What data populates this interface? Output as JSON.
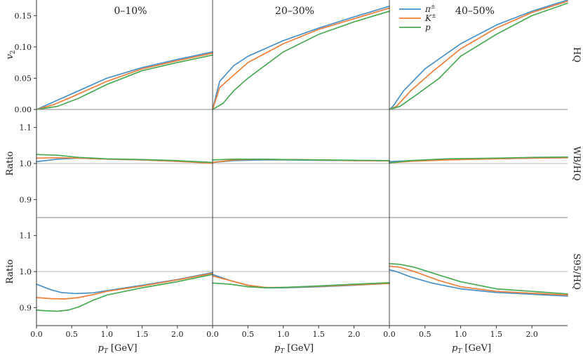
{
  "chart_data": {
    "type": "line",
    "title": "",
    "xlabel": "p_T [GeV]",
    "x_ticks": [
      0.0,
      0.5,
      1.0,
      1.5,
      2.0
    ],
    "x_tick_labels": [
      "0.0",
      "0.5",
      "1.0",
      "1.5",
      "2.0"
    ],
    "xlim": [
      0.0,
      2.5
    ],
    "columns": [
      {
        "title": "0–10%"
      },
      {
        "title": "20–30%"
      },
      {
        "title": "40–50%"
      }
    ],
    "rows": [
      {
        "ylabel": "v",
        "ylabel_sub": "2",
        "side_label": "HQ",
        "ylim": [
          0.0,
          0.175
        ],
        "y_ticks": [
          0.0,
          0.05,
          0.1,
          0.15
        ],
        "y_tick_labels": [
          "0.00",
          "0.05",
          "0.10",
          "0.15"
        ],
        "ref_line": null
      },
      {
        "ylabel": "Ratio",
        "side_label": "WB/HQ",
        "ylim": [
          0.85,
          1.15
        ],
        "y_ticks": [
          0.9,
          1.0,
          1.1
        ],
        "y_tick_labels": [
          "0.9",
          "1.0",
          "1.1"
        ],
        "ref_line": 1.0
      },
      {
        "ylabel": "Ratio",
        "side_label": "S95/HQ",
        "ylim": [
          0.85,
          1.15
        ],
        "y_ticks": [
          0.9,
          1.0,
          1.1
        ],
        "y_tick_labels": [
          "0.9",
          "1.0",
          "1.1"
        ],
        "ref_line": 1.0
      }
    ],
    "legend": {
      "placement": "top-right of middle column",
      "entries": [
        {
          "symbol": "π",
          "sup": "±",
          "color": "#4a90c8"
        },
        {
          "symbol": "K",
          "sup": "±",
          "color": "#ef7f3a"
        },
        {
          "symbol": "p",
          "sup": "",
          "color": "#4aaa55"
        }
      ]
    },
    "series_colors": {
      "pion": "#4a90c8",
      "kaon": "#ef7f3a",
      "proton": "#4aaa55"
    },
    "panels": [
      [
        {
          "pion": [
            [
              0.0,
              0.0
            ],
            [
              0.2,
              0.01
            ],
            [
              0.5,
              0.025
            ],
            [
              1.0,
              0.05
            ],
            [
              1.5,
              0.067
            ],
            [
              2.0,
              0.08
            ],
            [
              2.5,
              0.092
            ]
          ],
          "kaon": [
            [
              0.0,
              0.0
            ],
            [
              0.25,
              0.008
            ],
            [
              0.5,
              0.02
            ],
            [
              1.0,
              0.045
            ],
            [
              1.5,
              0.065
            ],
            [
              2.0,
              0.078
            ],
            [
              2.5,
              0.09
            ]
          ],
          "proton": [
            [
              0.0,
              0.0
            ],
            [
              0.3,
              0.005
            ],
            [
              0.6,
              0.018
            ],
            [
              1.0,
              0.04
            ],
            [
              1.5,
              0.062
            ],
            [
              2.0,
              0.075
            ],
            [
              2.5,
              0.087
            ]
          ]
        },
        {
          "pion": [
            [
              0.0,
              0.0
            ],
            [
              0.1,
              0.045
            ],
            [
              0.3,
              0.07
            ],
            [
              0.5,
              0.085
            ],
            [
              1.0,
              0.11
            ],
            [
              1.5,
              0.13
            ],
            [
              2.0,
              0.148
            ],
            [
              2.5,
              0.165
            ]
          ],
          "kaon": [
            [
              0.0,
              0.0
            ],
            [
              0.1,
              0.035
            ],
            [
              0.3,
              0.055
            ],
            [
              0.5,
              0.075
            ],
            [
              1.0,
              0.105
            ],
            [
              1.5,
              0.128
            ],
            [
              2.0,
              0.145
            ],
            [
              2.5,
              0.162
            ]
          ],
          "proton": [
            [
              0.0,
              0.0
            ],
            [
              0.15,
              0.01
            ],
            [
              0.3,
              0.03
            ],
            [
              0.5,
              0.05
            ],
            [
              1.0,
              0.092
            ],
            [
              1.5,
              0.12
            ],
            [
              2.0,
              0.14
            ],
            [
              2.5,
              0.157
            ]
          ]
        },
        {
          "pion": [
            [
              0.0,
              0.0
            ],
            [
              0.05,
              0.005
            ],
            [
              0.2,
              0.03
            ],
            [
              0.5,
              0.065
            ],
            [
              1.0,
              0.105
            ],
            [
              1.5,
              0.135
            ],
            [
              2.0,
              0.157
            ],
            [
              2.5,
              0.175
            ]
          ],
          "kaon": [
            [
              0.0,
              0.0
            ],
            [
              0.1,
              0.005
            ],
            [
              0.3,
              0.03
            ],
            [
              0.6,
              0.06
            ],
            [
              1.0,
              0.097
            ],
            [
              1.5,
              0.13
            ],
            [
              2.0,
              0.155
            ],
            [
              2.5,
              0.173
            ]
          ],
          "proton": [
            [
              0.0,
              0.0
            ],
            [
              0.15,
              0.005
            ],
            [
              0.4,
              0.025
            ],
            [
              0.7,
              0.05
            ],
            [
              1.0,
              0.085
            ],
            [
              1.5,
              0.12
            ],
            [
              2.0,
              0.15
            ],
            [
              2.5,
              0.17
            ]
          ]
        }
      ],
      [
        {
          "pion": [
            [
              0.0,
              1.005
            ],
            [
              0.3,
              1.012
            ],
            [
              0.6,
              1.015
            ],
            [
              1.0,
              1.012
            ],
            [
              1.5,
              1.01
            ],
            [
              2.0,
              1.006
            ],
            [
              2.5,
              1.002
            ]
          ],
          "kaon": [
            [
              0.0,
              1.015
            ],
            [
              0.3,
              1.016
            ],
            [
              0.6,
              1.015
            ],
            [
              1.0,
              1.012
            ],
            [
              1.5,
              1.01
            ],
            [
              2.0,
              1.006
            ],
            [
              2.5,
              1.001
            ]
          ],
          "proton": [
            [
              0.0,
              1.025
            ],
            [
              0.3,
              1.023
            ],
            [
              0.6,
              1.017
            ],
            [
              1.0,
              1.013
            ],
            [
              1.5,
              1.011
            ],
            [
              2.0,
              1.008
            ],
            [
              2.5,
              1.003
            ]
          ]
        },
        {
          "pion": [
            [
              0.0,
              1.003
            ],
            [
              0.3,
              1.008
            ],
            [
              0.7,
              1.01
            ],
            [
              1.0,
              1.01
            ],
            [
              1.5,
              1.009
            ],
            [
              2.0,
              1.008
            ],
            [
              2.5,
              1.008
            ]
          ],
          "kaon": [
            [
              0.0,
              1.003
            ],
            [
              0.3,
              1.01
            ],
            [
              0.7,
              1.012
            ],
            [
              1.0,
              1.011
            ],
            [
              1.5,
              1.01
            ],
            [
              2.0,
              1.008
            ],
            [
              2.5,
              1.007
            ]
          ],
          "proton": [
            [
              0.0,
              1.01
            ],
            [
              0.3,
              1.012
            ],
            [
              0.7,
              1.012
            ],
            [
              1.0,
              1.011
            ],
            [
              1.5,
              1.01
            ],
            [
              2.0,
              1.009
            ],
            [
              2.5,
              1.008
            ]
          ]
        },
        {
          "pion": [
            [
              0.0,
              1.005
            ],
            [
              0.3,
              1.008
            ],
            [
              0.8,
              1.012
            ],
            [
              1.5,
              1.013
            ],
            [
              2.0,
              1.015
            ],
            [
              2.5,
              1.016
            ]
          ],
          "kaon": [
            [
              0.0,
              1.002
            ],
            [
              0.3,
              1.006
            ],
            [
              0.8,
              1.01
            ],
            [
              1.5,
              1.013
            ],
            [
              2.0,
              1.015
            ],
            [
              2.5,
              1.016
            ]
          ],
          "proton": [
            [
              0.0,
              1.002
            ],
            [
              0.3,
              1.008
            ],
            [
              0.8,
              1.013
            ],
            [
              1.5,
              1.015
            ],
            [
              2.0,
              1.017
            ],
            [
              2.5,
              1.018
            ]
          ]
        }
      ],
      [
        {
          "pion": [
            [
              0.0,
              0.965
            ],
            [
              0.2,
              0.95
            ],
            [
              0.35,
              0.942
            ],
            [
              0.55,
              0.939
            ],
            [
              0.8,
              0.941
            ],
            [
              1.0,
              0.947
            ],
            [
              1.5,
              0.962
            ],
            [
              2.0,
              0.978
            ],
            [
              2.5,
              0.997
            ]
          ],
          "kaon": [
            [
              0.0,
              0.928
            ],
            [
              0.2,
              0.925
            ],
            [
              0.4,
              0.924
            ],
            [
              0.6,
              0.928
            ],
            [
              0.8,
              0.936
            ],
            [
              1.0,
              0.945
            ],
            [
              1.5,
              0.96
            ],
            [
              2.0,
              0.977
            ],
            [
              2.5,
              0.995
            ]
          ],
          "proton": [
            [
              0.0,
              0.893
            ],
            [
              0.15,
              0.891
            ],
            [
              0.3,
              0.89
            ],
            [
              0.45,
              0.893
            ],
            [
              0.6,
              0.902
            ],
            [
              0.8,
              0.92
            ],
            [
              1.0,
              0.935
            ],
            [
              1.5,
              0.955
            ],
            [
              2.0,
              0.972
            ],
            [
              2.5,
              0.992
            ]
          ]
        },
        {
          "pion": [
            [
              0.0,
              0.992
            ],
            [
              0.25,
              0.975
            ],
            [
              0.5,
              0.962
            ],
            [
              0.75,
              0.955
            ],
            [
              1.0,
              0.955
            ],
            [
              1.5,
              0.958
            ],
            [
              2.0,
              0.962
            ],
            [
              2.5,
              0.967
            ]
          ],
          "kaon": [
            [
              0.0,
              0.988
            ],
            [
              0.25,
              0.975
            ],
            [
              0.5,
              0.962
            ],
            [
              0.75,
              0.956
            ],
            [
              1.0,
              0.956
            ],
            [
              1.5,
              0.959
            ],
            [
              2.0,
              0.963
            ],
            [
              2.5,
              0.967
            ]
          ],
          "proton": [
            [
              0.0,
              0.968
            ],
            [
              0.25,
              0.965
            ],
            [
              0.5,
              0.958
            ],
            [
              0.75,
              0.955
            ],
            [
              1.0,
              0.956
            ],
            [
              1.5,
              0.96
            ],
            [
              2.0,
              0.965
            ],
            [
              2.5,
              0.969
            ]
          ]
        },
        {
          "pion": [
            [
              0.0,
              1.005
            ],
            [
              0.1,
              1.0
            ],
            [
              0.3,
              0.985
            ],
            [
              0.6,
              0.968
            ],
            [
              1.0,
              0.952
            ],
            [
              1.5,
              0.942
            ],
            [
              2.0,
              0.937
            ],
            [
              2.5,
              0.932
            ]
          ],
          "kaon": [
            [
              0.0,
              1.015
            ],
            [
              0.15,
              1.012
            ],
            [
              0.35,
              1.0
            ],
            [
              0.7,
              0.975
            ],
            [
              1.0,
              0.958
            ],
            [
              1.5,
              0.945
            ],
            [
              2.0,
              0.94
            ],
            [
              2.5,
              0.935
            ]
          ],
          "proton": [
            [
              0.0,
              1.022
            ],
            [
              0.15,
              1.02
            ],
            [
              0.35,
              1.012
            ],
            [
              0.7,
              0.99
            ],
            [
              1.0,
              0.972
            ],
            [
              1.5,
              0.952
            ],
            [
              2.0,
              0.945
            ],
            [
              2.5,
              0.938
            ]
          ]
        }
      ]
    ]
  }
}
